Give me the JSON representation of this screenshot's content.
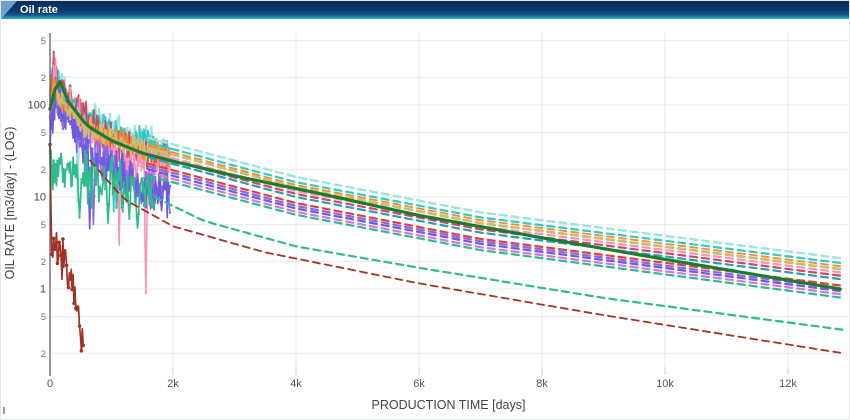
{
  "window": {
    "title": "Oil rate"
  },
  "colors": {
    "header_top": "#0a2c5e",
    "header_bottom": "#14558b",
    "header_edge": "#2f9fc0",
    "header_accent": "#7fb3d8",
    "grid": "#e8e8e8",
    "axis_line": "#555555",
    "tick_major": "#444444",
    "tick_minor": "#777777",
    "axis_title": "#444444",
    "model_green": "#1b7c2d"
  },
  "chart_data": {
    "type": "line",
    "title": "Oil rate",
    "xlabel": "PRODUCTION TIME [days]",
    "ylabel": "OIL RATE [m3/day] - (LOG)",
    "x_scale": "linear",
    "y_scale": "log",
    "xlim": [
      0,
      12950
    ],
    "ylim": [
      0.2,
      500
    ],
    "grid": true,
    "legend": "none",
    "x_ticks": [
      {
        "label": "0",
        "value": 0
      },
      {
        "label": "2k",
        "value": 2000
      },
      {
        "label": "4k",
        "value": 4000
      },
      {
        "label": "6k",
        "value": 6000
      },
      {
        "label": "8k",
        "value": 8000
      },
      {
        "label": "10k",
        "value": 10000
      },
      {
        "label": "12k",
        "value": 12000
      }
    ],
    "y_ticks": [
      {
        "label": "5",
        "value": 500,
        "major": false
      },
      {
        "label": "2",
        "value": 200,
        "major": false
      },
      {
        "label": "100",
        "value": 100,
        "major": true
      },
      {
        "label": "5",
        "value": 50,
        "major": false
      },
      {
        "label": "2",
        "value": 20,
        "major": false
      },
      {
        "label": "10",
        "value": 10,
        "major": true
      },
      {
        "label": "5",
        "value": 5,
        "major": false
      },
      {
        "label": "2",
        "value": 2,
        "major": false
      },
      {
        "label": "1",
        "value": 1,
        "major": true
      },
      {
        "label": "5",
        "value": 0.5,
        "major": false
      },
      {
        "label": "2",
        "value": 0.2,
        "major": false
      }
    ],
    "series": [
      {
        "name": "history-1",
        "role": "history",
        "style": "solid",
        "markers": true,
        "color": "#9fe3e0",
        "width": 2.0,
        "jitter": 0.07,
        "seed": 11,
        "step": 15,
        "points": [
          [
            0,
            110
          ],
          [
            50,
            330
          ],
          [
            150,
            200
          ],
          [
            300,
            130
          ],
          [
            600,
            85
          ],
          [
            1000,
            60
          ],
          [
            1500,
            45
          ],
          [
            1950,
            36
          ]
        ],
        "dips": [
          [
            450,
            9
          ]
        ]
      },
      {
        "name": "history-2",
        "role": "history",
        "style": "solid",
        "markers": true,
        "color": "#2ec9c9",
        "width": 1.8,
        "jitter": 0.09,
        "seed": 22,
        "step": 15,
        "points": [
          [
            0,
            95
          ],
          [
            55,
            300
          ],
          [
            160,
            170
          ],
          [
            350,
            110
          ],
          [
            700,
            70
          ],
          [
            1200,
            48
          ],
          [
            1950,
            31
          ]
        ],
        "dips": [
          [
            1040,
            7
          ]
        ]
      },
      {
        "name": "history-3",
        "role": "history",
        "style": "solid",
        "markers": true,
        "color": "#d7455b",
        "width": 1.6,
        "jitter": 0.12,
        "seed": 33,
        "step": 15,
        "points": [
          [
            0,
            85
          ],
          [
            45,
            255
          ],
          [
            160,
            150
          ],
          [
            400,
            85
          ],
          [
            800,
            50
          ],
          [
            1300,
            33
          ],
          [
            1950,
            24
          ]
        ],
        "dips": []
      },
      {
        "name": "history-4",
        "role": "history",
        "style": "solid",
        "markers": true,
        "color": "#f593bd",
        "width": 1.6,
        "jitter": 0.13,
        "seed": 44,
        "step": 15,
        "points": [
          [
            0,
            70
          ],
          [
            60,
            210
          ],
          [
            200,
            120
          ],
          [
            500,
            60
          ],
          [
            900,
            35
          ],
          [
            1400,
            22
          ],
          [
            1950,
            18
          ]
        ],
        "dips": [
          [
            1120,
            3
          ],
          [
            1560,
            0.9
          ]
        ]
      },
      {
        "name": "history-5",
        "role": "history",
        "style": "solid",
        "markers": true,
        "color": "#8d68de",
        "width": 1.6,
        "jitter": 0.13,
        "seed": 55,
        "step": 15,
        "points": [
          [
            0,
            60
          ],
          [
            70,
            150
          ],
          [
            250,
            80
          ],
          [
            600,
            38
          ],
          [
            1000,
            22
          ],
          [
            1500,
            14
          ],
          [
            1950,
            12
          ]
        ],
        "dips": [
          [
            700,
            5
          ]
        ]
      },
      {
        "name": "history-6",
        "role": "history",
        "style": "solid",
        "markers": true,
        "color": "#6b5ae4",
        "width": 1.6,
        "jitter": 0.13,
        "seed": 66,
        "step": 15,
        "points": [
          [
            0,
            55
          ],
          [
            80,
            140
          ],
          [
            300,
            70
          ],
          [
            700,
            32
          ],
          [
            1100,
            18
          ],
          [
            1600,
            12
          ],
          [
            1950,
            10
          ]
        ],
        "dips": [
          [
            640,
            4.5
          ]
        ]
      },
      {
        "name": "history-7",
        "role": "history",
        "style": "solid",
        "markers": true,
        "color": "#f08d2a",
        "width": 1.5,
        "jitter": 0.07,
        "seed": 77,
        "step": 15,
        "points": [
          [
            0,
            88
          ],
          [
            55,
            175
          ],
          [
            220,
            105
          ],
          [
            550,
            62
          ],
          [
            1000,
            44
          ],
          [
            1500,
            34
          ],
          [
            1950,
            29
          ]
        ],
        "dips": []
      },
      {
        "name": "history-8",
        "role": "history",
        "style": "solid",
        "markers": true,
        "color": "#cdbd72",
        "width": 1.5,
        "jitter": 0.07,
        "seed": 88,
        "step": 15,
        "points": [
          [
            0,
            80
          ],
          [
            65,
            165
          ],
          [
            240,
            95
          ],
          [
            600,
            55
          ],
          [
            1100,
            40
          ],
          [
            1950,
            27
          ]
        ],
        "dips": []
      },
      {
        "name": "history-9",
        "role": "history",
        "style": "solid",
        "markers": true,
        "color": "#2dbd8c",
        "width": 1.7,
        "jitter": 0.16,
        "seed": 99,
        "step": 15,
        "points": [
          [
            0,
            28
          ],
          [
            100,
            21
          ],
          [
            300,
            18
          ],
          [
            600,
            16
          ],
          [
            900,
            14
          ],
          [
            1300,
            12
          ],
          [
            1700,
            10
          ]
        ],
        "dips": [
          [
            480,
            6
          ],
          [
            950,
            5.2
          ],
          [
            1420,
            4.6
          ]
        ]
      },
      {
        "name": "history-10",
        "role": "history",
        "style": "solid",
        "markers": true,
        "color": "#a33126",
        "width": 1.7,
        "jitter": 0.14,
        "seed": 110,
        "step": 15,
        "marker_r": 1.8,
        "points": [
          [
            0,
            40
          ],
          [
            12,
            6
          ],
          [
            35,
            2.6
          ],
          [
            120,
            2.4
          ],
          [
            260,
            2.1
          ],
          [
            340,
            1.4
          ],
          [
            420,
            0.8
          ],
          [
            470,
            0.5
          ],
          [
            520,
            0.3
          ],
          [
            545,
            0.21
          ]
        ],
        "dips": []
      },
      {
        "name": "forecast-1",
        "role": "forecast",
        "style": "dashed",
        "color": "#9fe3e0",
        "width": 2.4,
        "points": [
          [
            1600,
            44
          ],
          [
            4000,
            16.5
          ],
          [
            7000,
            6.8
          ],
          [
            12900,
            2.15
          ]
        ]
      },
      {
        "name": "forecast-2",
        "role": "forecast",
        "style": "dashed",
        "color": "#2ec9c9",
        "width": 2.2,
        "points": [
          [
            1600,
            39
          ],
          [
            4000,
            14.5
          ],
          [
            7000,
            6.0
          ],
          [
            12900,
            1.9
          ]
        ]
      },
      {
        "name": "forecast-3",
        "role": "forecast",
        "style": "dashed",
        "color": "#f08d2a",
        "width": 1.8,
        "points": [
          [
            1600,
            36
          ],
          [
            4000,
            13.5
          ],
          [
            7000,
            5.6
          ],
          [
            12900,
            1.75
          ]
        ]
      },
      {
        "name": "forecast-4",
        "role": "forecast",
        "style": "dashed",
        "color": "#cdbd72",
        "width": 2.8,
        "points": [
          [
            1600,
            34
          ],
          [
            4000,
            12.7
          ],
          [
            7000,
            5.2
          ],
          [
            12900,
            1.63
          ]
        ]
      },
      {
        "name": "forecast-5",
        "role": "forecast",
        "style": "dashed",
        "color": "#f593bd",
        "width": 2.2,
        "points": [
          [
            1600,
            31
          ],
          [
            4000,
            11.6
          ],
          [
            7000,
            4.8
          ],
          [
            12900,
            1.5
          ]
        ]
      },
      {
        "name": "forecast-6",
        "role": "forecast",
        "style": "dashed",
        "color": "#d7455b",
        "width": 2.2,
        "points": [
          [
            1600,
            29
          ],
          [
            4000,
            10.8
          ],
          [
            7000,
            4.45
          ],
          [
            12900,
            1.38
          ]
        ]
      },
      {
        "name": "forecast-7",
        "role": "forecast",
        "style": "dashed",
        "color": "#2a9db6",
        "width": 2.2,
        "points": [
          [
            1600,
            27
          ],
          [
            4000,
            10.0
          ],
          [
            7000,
            4.1
          ],
          [
            12900,
            1.27
          ]
        ]
      },
      {
        "name": "forecast-8",
        "role": "forecast",
        "style": "dashed",
        "color": "#e14040",
        "width": 2.2,
        "points": [
          [
            1600,
            23
          ],
          [
            4000,
            8.6
          ],
          [
            7000,
            3.5
          ],
          [
            12900,
            1.08
          ]
        ]
      },
      {
        "name": "forecast-9",
        "role": "forecast",
        "style": "dashed",
        "color": "#8d68de",
        "width": 2.2,
        "points": [
          [
            1600,
            21.5
          ],
          [
            4000,
            8.0
          ],
          [
            7000,
            3.3
          ],
          [
            12900,
            1.0
          ]
        ]
      },
      {
        "name": "forecast-10",
        "role": "forecast",
        "style": "dashed",
        "color": "#6b5ae4",
        "width": 2.2,
        "points": [
          [
            1600,
            20
          ],
          [
            4000,
            7.5
          ],
          [
            7000,
            3.1
          ],
          [
            12900,
            0.94
          ]
        ]
      },
      {
        "name": "forecast-11",
        "role": "forecast",
        "style": "dashed",
        "color": "#da74da",
        "width": 2.2,
        "points": [
          [
            1600,
            18.5
          ],
          [
            4000,
            6.9
          ],
          [
            7000,
            2.85
          ],
          [
            12900,
            0.87
          ]
        ]
      },
      {
        "name": "forecast-12",
        "role": "forecast",
        "style": "dashed",
        "color": "#2dbd8c",
        "width": 2.2,
        "points": [
          [
            1600,
            17
          ],
          [
            4000,
            6.4
          ],
          [
            7000,
            2.65
          ],
          [
            12900,
            0.8
          ]
        ]
      },
      {
        "name": "forecast-low-green",
        "role": "forecast",
        "style": "dashed",
        "color": "#2dbd8c",
        "width": 2.2,
        "points": [
          [
            1700,
            10
          ],
          [
            2500,
            5.5
          ],
          [
            4000,
            2.9
          ],
          [
            6000,
            1.7
          ],
          [
            9000,
            0.8
          ],
          [
            12900,
            0.36
          ]
        ]
      },
      {
        "name": "forecast-low-darkred",
        "role": "forecast",
        "style": "dashed",
        "color": "#a33126",
        "width": 1.8,
        "points": [
          [
            650,
            25
          ],
          [
            1200,
            9.5
          ],
          [
            2000,
            4.8
          ],
          [
            3500,
            2.5
          ],
          [
            6000,
            1.15
          ],
          [
            9000,
            0.52
          ],
          [
            12900,
            0.2
          ]
        ]
      },
      {
        "name": "model-trend",
        "role": "model",
        "style": "solid",
        "color": "#1b7c2d",
        "width": 3.2,
        "points": [
          [
            0,
            90
          ],
          [
            130,
            200
          ],
          [
            300,
            108
          ],
          [
            600,
            60
          ],
          [
            1000,
            41
          ],
          [
            1500,
            30
          ],
          [
            2000,
            24.5
          ],
          [
            3000,
            17
          ],
          [
            4500,
            10.5
          ],
          [
            6000,
            6.3
          ],
          [
            8000,
            3.6
          ],
          [
            10000,
            2.1
          ],
          [
            12850,
            1.0
          ]
        ]
      }
    ]
  }
}
